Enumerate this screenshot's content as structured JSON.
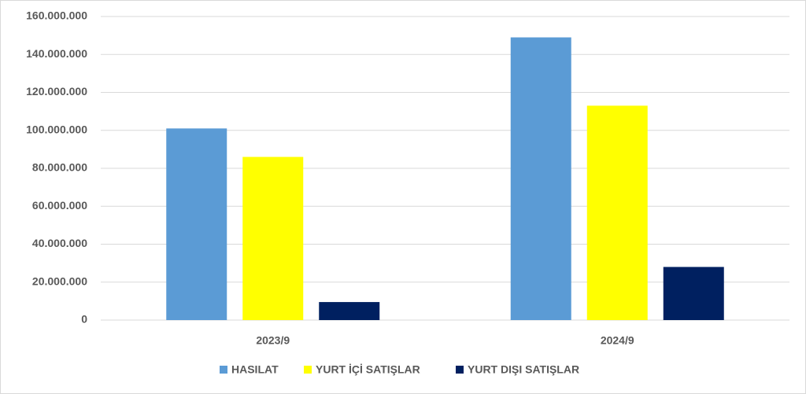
{
  "chart_data": {
    "type": "bar",
    "categories": [
      "2023/9",
      "2024/9"
    ],
    "series": [
      {
        "name": "HASILAT",
        "color": "#5b9bd5",
        "values": [
          101000000,
          149000000
        ]
      },
      {
        "name": "YURT İÇİ SATIŞLAR",
        "color": "#ffff00",
        "values": [
          86000000,
          113000000
        ]
      },
      {
        "name": "YURT DIŞI SATIŞLAR",
        "color": "#002060",
        "values": [
          9500000,
          28000000
        ]
      }
    ],
    "ylim": [
      0,
      160000000
    ],
    "yticks": [
      0,
      {
        "value": 20000000,
        "label": "20.000.000"
      },
      {
        "value": 40000000,
        "label": "40.000.000"
      },
      {
        "value": 60000000,
        "label": "60.000.000"
      },
      {
        "value": 80000000,
        "label": "80.000.000"
      },
      {
        "value": 100000000,
        "label": "100.000.000"
      },
      {
        "value": 120000000,
        "label": "120.000.000"
      },
      {
        "value": 140000000,
        "label": "140.000.000"
      },
      {
        "value": 160000000,
        "label": "160.000.000"
      }
    ],
    "grid": true,
    "legend": "bottom"
  }
}
